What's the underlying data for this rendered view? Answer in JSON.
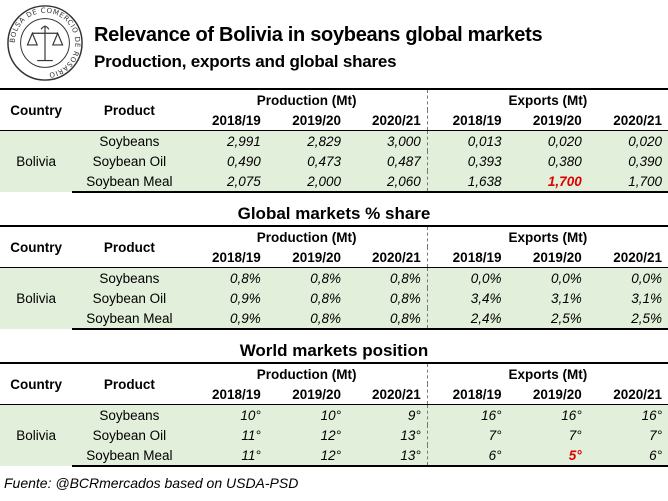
{
  "header": {
    "seal_text": "BOLSA DE COMERCIO DE ROSARIO",
    "title": "Relevance of Bolivia in soybeans global markets",
    "subtitle": "Production, exports and global shares"
  },
  "columns": {
    "country": "Country",
    "product": "Product",
    "production": "Production (Mt)",
    "exports": "Exports (Mt)",
    "years": [
      "2018/19",
      "2019/20",
      "2020/21",
      "2018/19",
      "2019/20",
      "2020/21"
    ]
  },
  "section2_title": "Global markets % share",
  "section3_title": "World markets position",
  "country": "Bolivia",
  "products": [
    "Soybeans",
    "Soybean Oil",
    "Soybean Meal"
  ],
  "volumes": [
    [
      "2,991",
      "2,829",
      "3,000",
      "0,013",
      "0,020",
      "0,020"
    ],
    [
      "0,490",
      "0,473",
      "0,487",
      "0,393",
      "0,380",
      "0,390"
    ],
    [
      "2,075",
      "2,000",
      "2,060",
      "1,638",
      "1,700",
      "1,700"
    ]
  ],
  "shares": [
    [
      "0,8%",
      "0,8%",
      "0,8%",
      "0,0%",
      "0,0%",
      "0,0%"
    ],
    [
      "0,9%",
      "0,8%",
      "0,8%",
      "3,4%",
      "3,1%",
      "3,1%"
    ],
    [
      "0,9%",
      "0,8%",
      "0,8%",
      "2,4%",
      "2,5%",
      "2,5%"
    ]
  ],
  "positions": [
    [
      "10°",
      "10°",
      "9°",
      "16°",
      "16°",
      "16°"
    ],
    [
      "11°",
      "12°",
      "13°",
      "7°",
      "7°",
      "7°"
    ],
    [
      "11°",
      "12°",
      "13°",
      "6°",
      "5°",
      "6°"
    ]
  ],
  "source": "Fuente: @BCRmercados based on USDA-PSD",
  "colors": {
    "row_fill": "#e2efda",
    "highlight": "#e00000"
  }
}
